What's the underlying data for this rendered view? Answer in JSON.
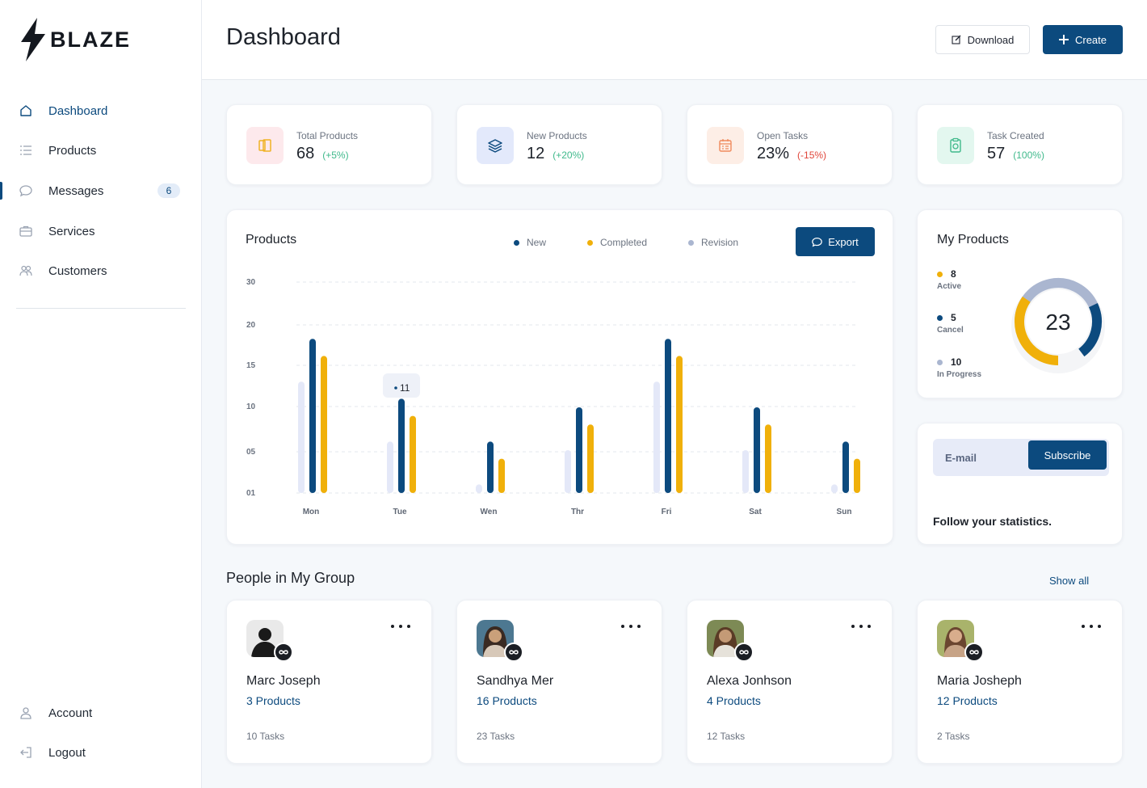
{
  "brand": {
    "name": "BLAZE"
  },
  "sidebar": {
    "items": [
      {
        "label": "Dashboard",
        "icon": "home-icon"
      },
      {
        "label": "Products",
        "icon": "list-icon"
      },
      {
        "label": "Messages",
        "icon": "chat-icon",
        "badge": "6"
      },
      {
        "label": "Services",
        "icon": "briefcase-icon"
      },
      {
        "label": "Customers",
        "icon": "users-icon"
      }
    ],
    "bottom_items": [
      {
        "label": "Account",
        "icon": "user-icon"
      },
      {
        "label": "Logout",
        "icon": "logout-icon"
      }
    ]
  },
  "header": {
    "title": "Dashboard",
    "download_label": "Download",
    "create_label": "Create"
  },
  "stats": [
    {
      "label": "Total Products",
      "value": "68",
      "change": "(+5%)",
      "change_color": "#3fb98b",
      "icon": "files-icon",
      "icon_bg": "#fde9ec",
      "icon_color": "#f0b224"
    },
    {
      "label": "New Products",
      "value": "12",
      "change": "(+20%)",
      "change_color": "#3fb98b",
      "icon": "layers-icon",
      "icon_bg": "#e3e9fb",
      "icon_color": "#0c4a7e"
    },
    {
      "label": "Open Tasks",
      "value": "23%",
      "change": "(-15%)",
      "change_color": "#e0453a",
      "icon": "calendar-icon",
      "icon_bg": "#fdeee6",
      "icon_color": "#f08a5d"
    },
    {
      "label": "Task Created",
      "value": "57",
      "change": "(100%)",
      "change_color": "#3fb98b",
      "icon": "clipboard-icon",
      "icon_bg": "#e3f7ef",
      "icon_color": "#3fb98b"
    }
  ],
  "products_chart": {
    "title": "Products",
    "export_label": "Export",
    "legend": [
      {
        "name": "New",
        "color": "#0c4a7e"
      },
      {
        "name": "Completed",
        "color": "#f0b00a"
      },
      {
        "name": "Revision",
        "color": "#aab6d0"
      }
    ],
    "tooltip": "11"
  },
  "chart_data": {
    "type": "bar",
    "categories": [
      "Mon",
      "Tue",
      "Wen",
      "Thr",
      "Fri",
      "Sat",
      "Sun"
    ],
    "y_ticks": [
      "30",
      "20",
      "15",
      "10",
      "05",
      "01"
    ],
    "series": [
      {
        "name": "Revision",
        "color": "#e4e8f8",
        "values": [
          13,
          6,
          1,
          5,
          13,
          5,
          1
        ]
      },
      {
        "name": "New",
        "color": "#0c4a7e",
        "values": [
          18,
          11,
          6,
          10,
          18,
          10,
          6
        ]
      },
      {
        "name": "Completed",
        "color": "#f0b00a",
        "values": [
          16,
          9,
          4,
          8,
          16,
          8,
          4
        ]
      }
    ],
    "grid": true,
    "legend_position": "top"
  },
  "my_products": {
    "title": "My Products",
    "total": "23",
    "items": [
      {
        "value": "8",
        "label": "Active",
        "color": "#f0b00a"
      },
      {
        "value": "5",
        "label": "Cancel",
        "color": "#0c4a7e"
      },
      {
        "value": "10",
        "label": "In Progress",
        "color": "#aab6d0"
      }
    ]
  },
  "subscribe": {
    "placeholder": "E-mail",
    "button_label": "Subscribe",
    "text": "Follow your statistics."
  },
  "people": {
    "title": "People in My Group",
    "show_all": "Show all",
    "members": [
      {
        "name": "Marc Joseph",
        "products": "3 Products",
        "tasks": "10 Tasks",
        "avatar_bg": "#e9e9e9",
        "avatar_fg": "#1a1a1a"
      },
      {
        "name": "Sandhya Mer",
        "products": "16 Products",
        "tasks": "23 Tasks",
        "avatar_bg": "#4d7891",
        "avatar_fg": "#caa07a"
      },
      {
        "name": "Alexa Jonhson",
        "products": "4 Products",
        "tasks": "12 Tasks",
        "avatar_bg": "#7d8a55",
        "avatar_fg": "#c49a76"
      },
      {
        "name": "Maria Josheph",
        "products": "12 Products",
        "tasks": "2 Tasks",
        "avatar_bg": "#a9b36b",
        "avatar_fg": "#d8ad8c"
      }
    ]
  }
}
